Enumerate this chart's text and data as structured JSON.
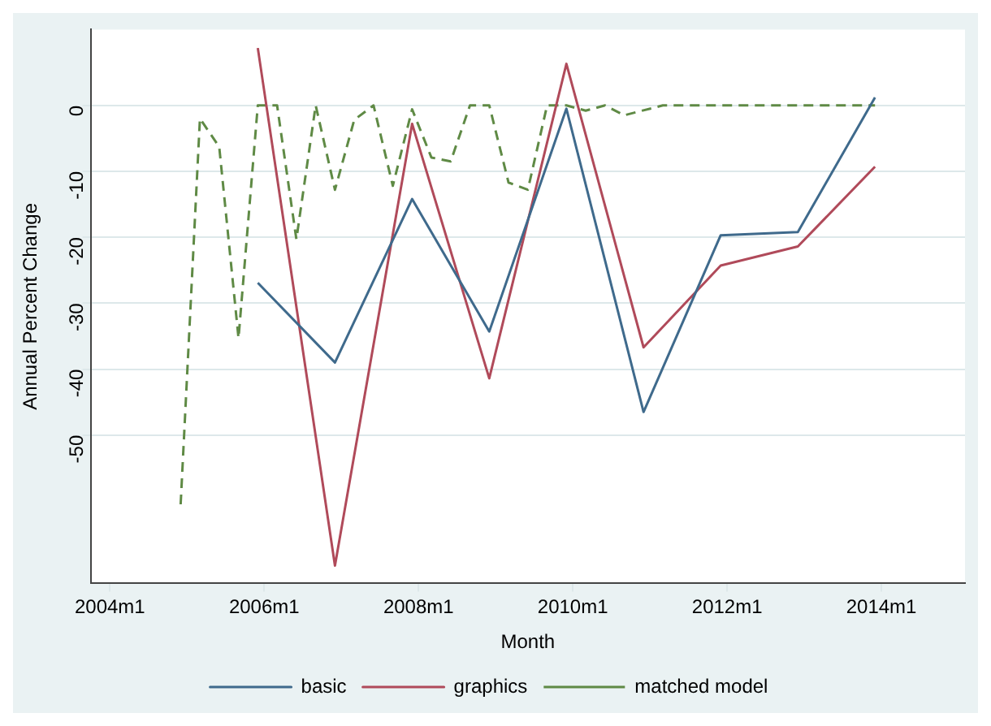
{
  "chart_data": {
    "type": "line",
    "xlabel": "Month",
    "ylabel": "Annual Percent Change",
    "xlim": [
      "2003-10",
      "2015-02"
    ],
    "ylim": [
      -72.5,
      11.5
    ],
    "xticks": [
      {
        "value": "2004-01",
        "label": "2004m1"
      },
      {
        "value": "2006-01",
        "label": "2006m1"
      },
      {
        "value": "2008-01",
        "label": "2008m1"
      },
      {
        "value": "2010-01",
        "label": "2010m1"
      },
      {
        "value": "2012-01",
        "label": "2012m1"
      },
      {
        "value": "2014-01",
        "label": "2014m1"
      }
    ],
    "yticks": [
      0,
      -10,
      -20,
      -30,
      -40,
      -50
    ],
    "grid": "y",
    "legend": "bottom",
    "marker": "none",
    "series": [
      {
        "name": "basic",
        "color": "#3f6a8c",
        "line_style": "solid",
        "x": [
          "2005-12",
          "2006-12",
          "2007-12",
          "2008-12",
          "2009-12",
          "2010-12",
          "2011-12",
          "2012-12",
          "2013-12"
        ],
        "values": [
          -26.9,
          -39,
          -14.2,
          -34.3,
          -0.5,
          -46.5,
          -19.7,
          -19.2,
          1.2
        ]
      },
      {
        "name": "graphics",
        "color": "#b04a5a",
        "line_style": "solid",
        "x": [
          "2005-12",
          "2006-12",
          "2007-12",
          "2008-12",
          "2009-12",
          "2010-12",
          "2011-12",
          "2012-12",
          "2013-12"
        ],
        "values": [
          8.7,
          -69.8,
          -2.8,
          -41.4,
          6.3,
          -36.7,
          -24.3,
          -21.4,
          -9.3
        ]
      },
      {
        "name": "matched model",
        "color": "#5f8a45",
        "line_style": "dashed",
        "x": [
          "2004-12",
          "2005-03",
          "2005-06",
          "2005-09",
          "2005-12",
          "2006-03",
          "2006-06",
          "2006-09",
          "2006-12",
          "2007-03",
          "2007-06",
          "2007-09",
          "2007-12",
          "2008-03",
          "2008-06",
          "2008-09",
          "2008-12",
          "2009-03",
          "2009-06",
          "2009-09",
          "2009-12",
          "2010-03",
          "2010-06",
          "2010-09",
          "2011-03",
          "2013-12"
        ],
        "values": [
          -60.5,
          -2,
          -6.3,
          -35.3,
          0,
          0,
          -20.3,
          0,
          -12.8,
          -2.2,
          0,
          -12.2,
          -0.6,
          -7.9,
          -8.5,
          0,
          0,
          -11.7,
          -12.8,
          0,
          0,
          -0.8,
          0,
          -1.5,
          0,
          0
        ]
      }
    ]
  }
}
